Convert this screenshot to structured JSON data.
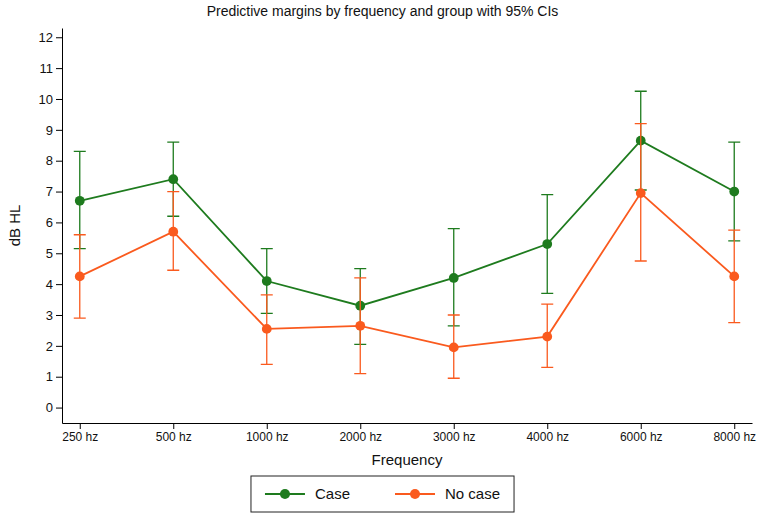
{
  "chart_data": {
    "type": "line",
    "title": "Predictive margins by frequency and group with 95% CIs",
    "x_label": "Frequency",
    "y_label": "dB HL",
    "categories": [
      "250 hz",
      "500 hz",
      "1000 hz",
      "2000 hz",
      "3000 hz",
      "4000 hz",
      "6000 hz",
      "8000 hz"
    ],
    "series": [
      {
        "name": "Case",
        "color": "#1e7b1e",
        "marker": "circle",
        "line_style": "solid",
        "values": [
          6.7,
          7.4,
          4.1,
          3.3,
          4.2,
          5.3,
          8.65,
          7.0
        ],
        "ci_low": [
          5.15,
          6.2,
          3.05,
          2.05,
          2.65,
          3.7,
          7.05,
          5.4
        ],
        "ci_high": [
          8.3,
          8.6,
          5.15,
          4.5,
          5.8,
          6.9,
          10.25,
          8.6
        ]
      },
      {
        "name": "No case",
        "color": "#fa5a1e",
        "marker": "circle",
        "line_style": "solid",
        "values": [
          4.25,
          5.7,
          2.55,
          2.65,
          1.95,
          2.3,
          6.95,
          4.25
        ],
        "ci_low": [
          2.9,
          4.45,
          1.4,
          1.1,
          0.95,
          1.3,
          4.75,
          2.75
        ],
        "ci_high": [
          5.6,
          7.0,
          3.65,
          4.2,
          3.0,
          3.35,
          9.2,
          5.75
        ]
      }
    ],
    "ylim": [
      -0.5,
      12.3
    ],
    "yticks": [
      0,
      1,
      2,
      3,
      4,
      5,
      6,
      7,
      8,
      9,
      10,
      11,
      12
    ],
    "grid": false,
    "legend": "bottom"
  }
}
